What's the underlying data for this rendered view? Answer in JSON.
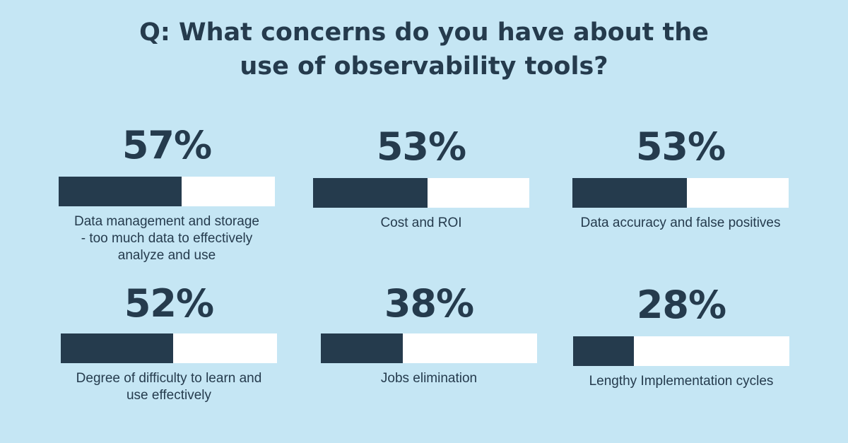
{
  "title_lines": [
    "Q: What concerns do you have about the",
    "use of observability tools?"
  ],
  "colors": {
    "background": "#c5e6f4",
    "bar_fill": "#253b4d",
    "bar_track": "#ffffff",
    "text": "#253b4d"
  },
  "chart_data": {
    "type": "bar",
    "title": "Q: What concerns do you have about the use of observability tools?",
    "categories": [
      "Data management and storage - too much data to effectively analyze and use",
      "Cost and ROI",
      "Data accuracy and false positives",
      "Degree of difficulty to learn and use effectively",
      "Jobs elimination",
      "Lengthy Implementation cycles"
    ],
    "values": [
      57,
      53,
      53,
      52,
      38,
      28
    ],
    "ylim": [
      0,
      100
    ],
    "items": [
      {
        "pct": "57%",
        "value": 57,
        "label_lines": [
          "Data management and storage",
          "- too much data to effectively",
          "analyze and use"
        ]
      },
      {
        "pct": "53%",
        "value": 53,
        "label_lines": [
          "Cost and ROI"
        ]
      },
      {
        "pct": "53%",
        "value": 53,
        "label_lines": [
          "Data accuracy and false positives"
        ]
      },
      {
        "pct": "52%",
        "value": 52,
        "label_lines": [
          "Degree of difficulty to learn and",
          "use effectively"
        ]
      },
      {
        "pct": "38%",
        "value": 38,
        "label_lines": [
          "Jobs elimination"
        ]
      },
      {
        "pct": "28%",
        "value": 28,
        "label_lines": [
          "Lengthy Implementation cycles"
        ]
      }
    ]
  }
}
